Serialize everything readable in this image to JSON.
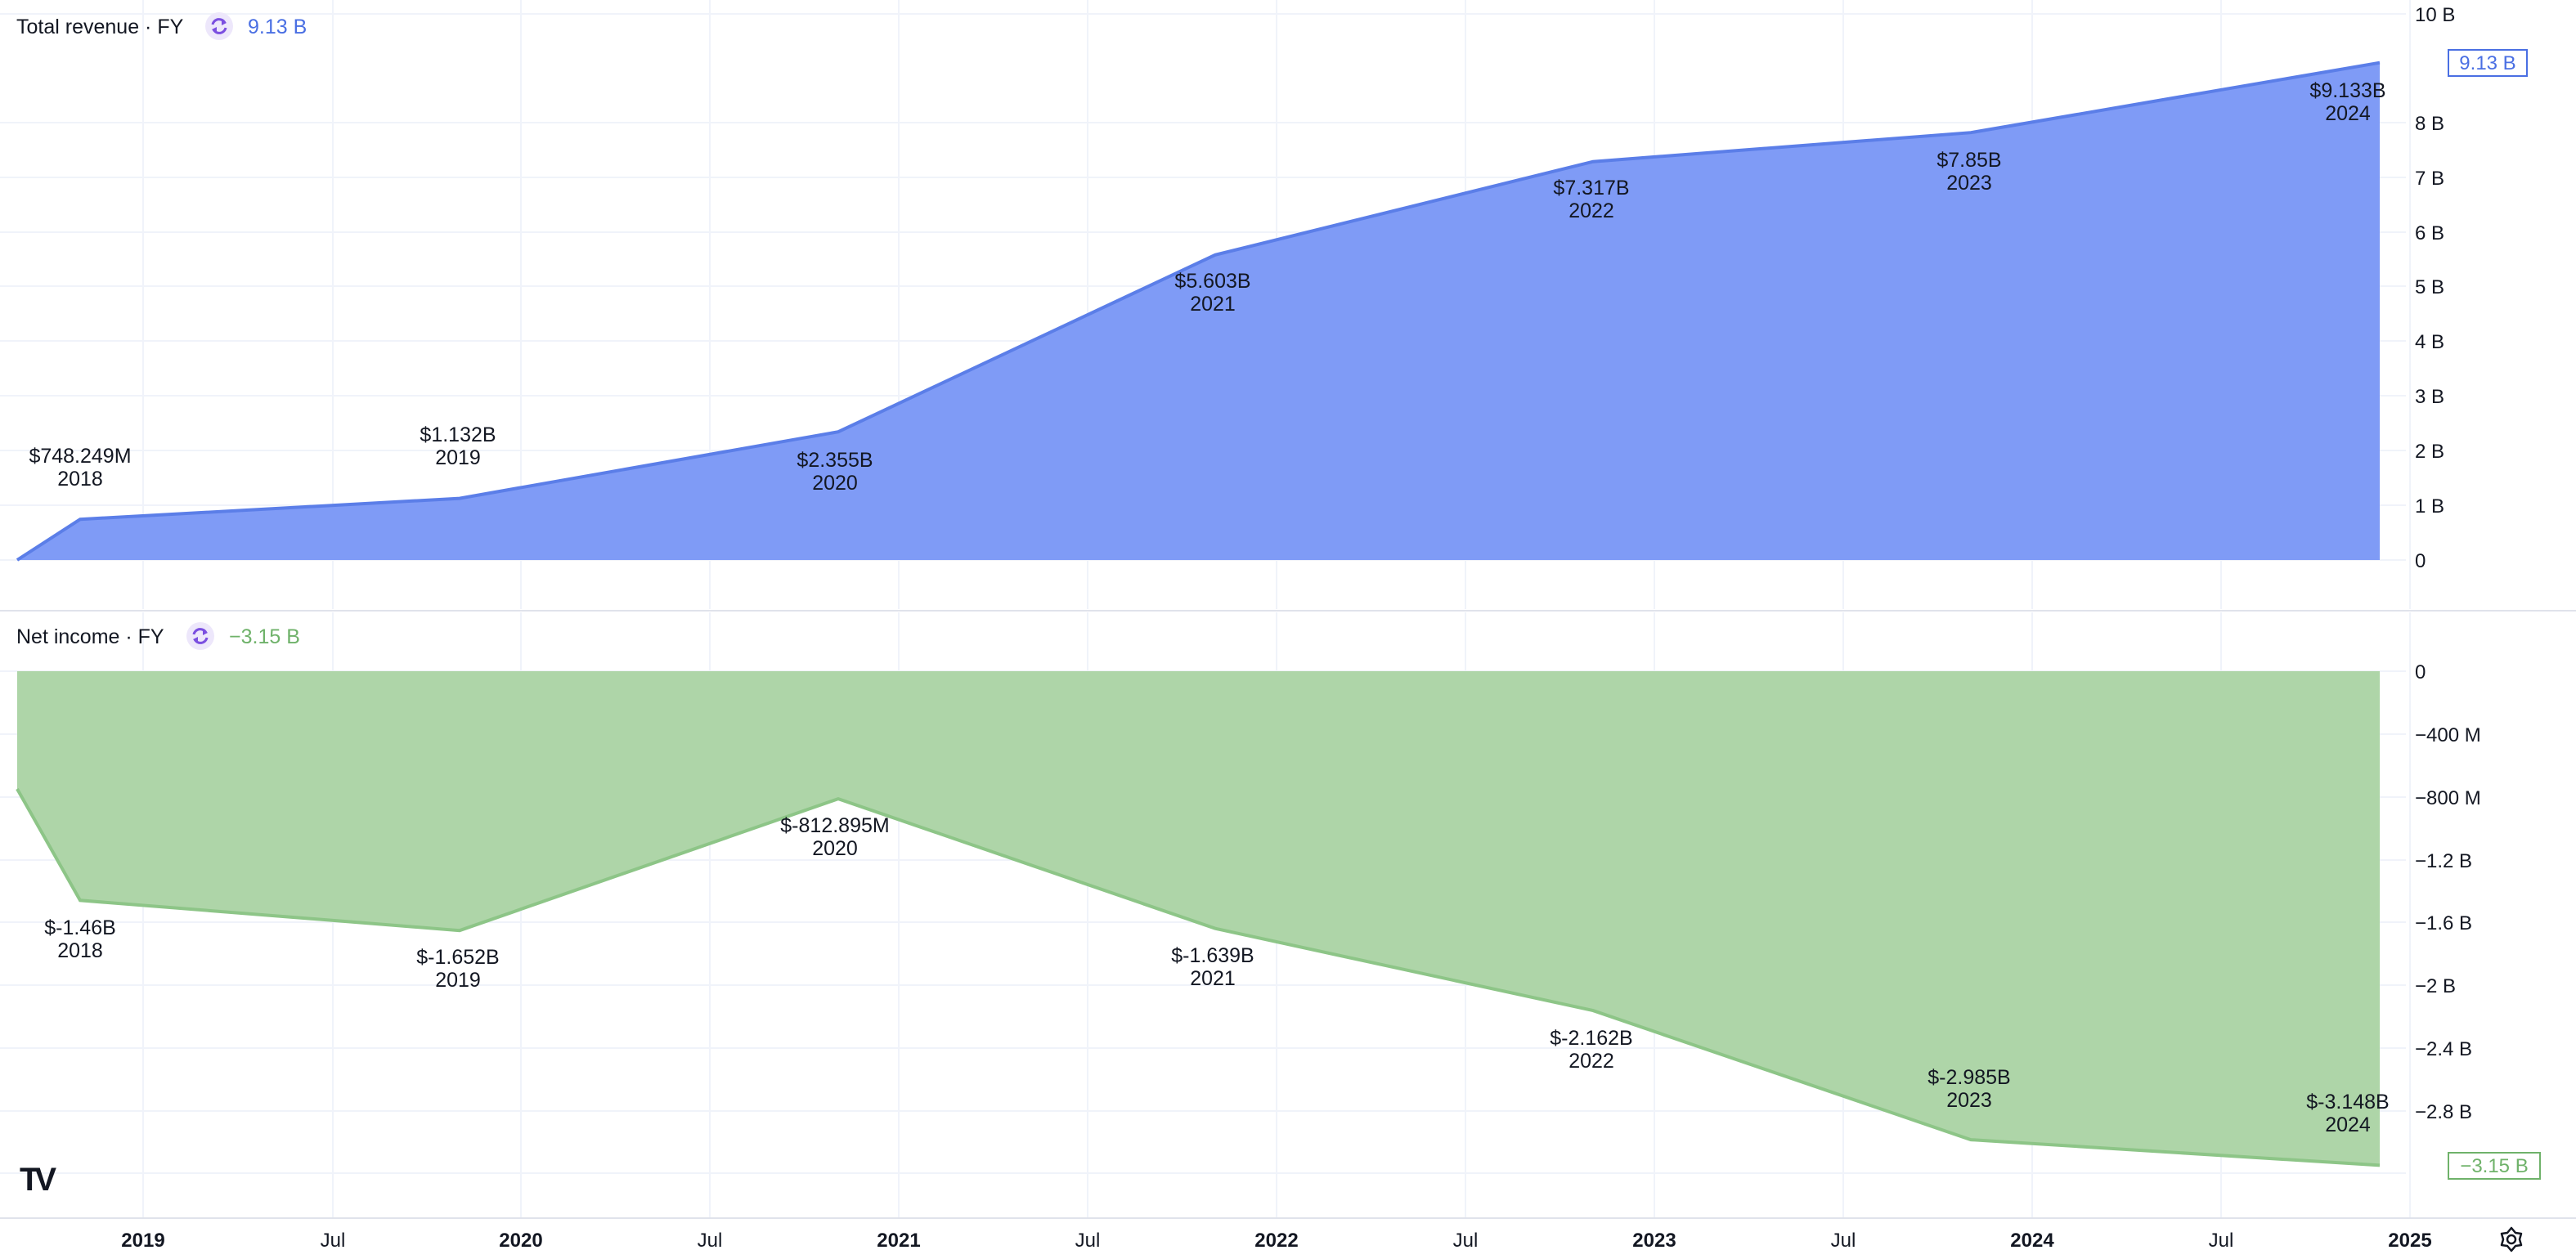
{
  "colors": {
    "revenue_fill": "#7f9bf6",
    "revenue_line": "#5b7ee8",
    "revenue_text": "#4a6fe3",
    "income_fill": "#aed5a8",
    "income_line": "#8dc587",
    "income_text": "#6fb26a",
    "refresh_icon_bg": "#ede7fb",
    "refresh_icon": "#7b4fe0"
  },
  "logo": {
    "text": "TV"
  },
  "settings_icon": "gear-icon",
  "time_axis": {
    "labels": [
      "2019",
      "Jul",
      "2020",
      "Jul",
      "2021",
      "Jul",
      "2022",
      "Jul",
      "2023",
      "Jul",
      "2024",
      "Jul",
      "2025"
    ]
  },
  "chart_data": [
    {
      "type": "area",
      "title": "Total revenue · FY",
      "current_value_label": "9.13 B",
      "price_tag": "9.13 B",
      "x": [
        "2018",
        "2019",
        "2020",
        "2021",
        "2022",
        "2023",
        "2024"
      ],
      "values": [
        0.748249,
        1.132,
        2.355,
        5.603,
        7.317,
        7.85,
        9.133
      ],
      "start_value": 0,
      "data_labels": [
        "$748.249M",
        "$1.132B",
        "$2.355B",
        "$5.603B",
        "$7.317B",
        "$7.85B",
        "$9.133B"
      ],
      "unit": "B",
      "ylim": [
        0,
        10
      ],
      "y_ticks": [
        "10 B",
        "8 B",
        "7 B",
        "6 B",
        "5 B",
        "4 B",
        "3 B",
        "2 B",
        "1 B",
        "0"
      ],
      "grid": true
    },
    {
      "type": "area",
      "title": "Net income · FY",
      "current_value_label": "−3.15 B",
      "price_tag": "−3.15 B",
      "x": [
        "2018",
        "2019",
        "2020",
        "2021",
        "2022",
        "2023",
        "2024"
      ],
      "values": [
        -1.46,
        -1.652,
        -0.812895,
        -1.639,
        -2.162,
        -2.985,
        -3.148
      ],
      "start_value": -0.75,
      "data_labels": [
        "$-1.46B",
        "$-1.652B",
        "$-812.895M",
        "$-1.639B",
        "$-2.162B",
        "$-2.985B",
        "$-3.148B"
      ],
      "unit": "B",
      "ylim": [
        -3.2,
        0
      ],
      "y_ticks": [
        "0",
        "−400 M",
        "−800 M",
        "−1.2 B",
        "−1.6 B",
        "−2 B",
        "−2.4 B",
        "−2.8 B"
      ],
      "grid": true
    }
  ]
}
